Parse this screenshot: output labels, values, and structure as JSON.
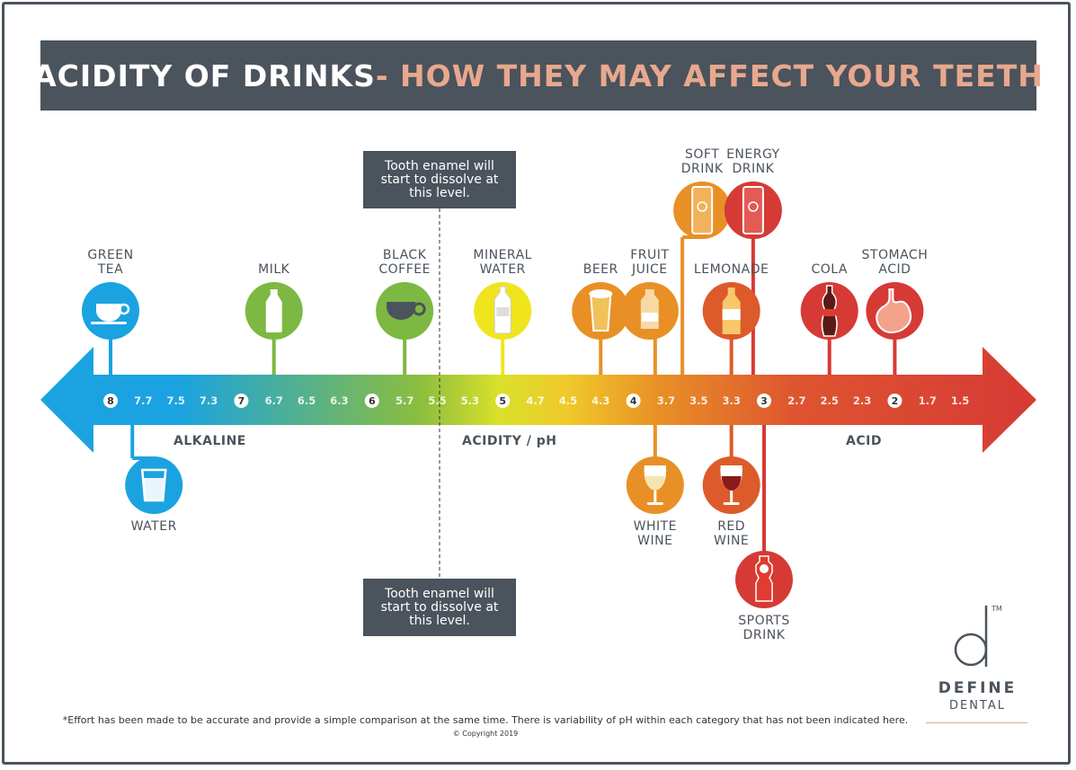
{
  "title": {
    "main": "ACIDITY OF DRINKS",
    "sub": " - HOW THEY MAY AFFECT YOUR TEETH"
  },
  "axis": {
    "ticks": [
      "8",
      "7.7",
      "7.5",
      "7.3",
      "7",
      "6.7",
      "6.5",
      "6.3",
      "6",
      "5.7",
      "5.5",
      "5.3",
      "5",
      "4.7",
      "4.5",
      "4.3",
      "4",
      "3.7",
      "3.5",
      "3.3",
      "3",
      "2.7",
      "2.5",
      "2.3",
      "2",
      "1.7",
      "1.5"
    ],
    "circled_ticks": [
      "8",
      "7",
      "6",
      "5",
      "4",
      "3",
      "2"
    ],
    "zones": {
      "left": "ALKALINE",
      "center": "ACIDITY / pH",
      "right": "ACID"
    }
  },
  "callout": {
    "text": "Tooth enamel will start to dissolve at this level."
  },
  "drinks": [
    {
      "id": "green-tea",
      "label": [
        "GREEN",
        "TEA"
      ],
      "ph": 8,
      "side": "top",
      "color": "#1aa3e0",
      "icon": "teacup-icon"
    },
    {
      "id": "water",
      "label": [
        "WATER"
      ],
      "ph": 7.8,
      "side": "bottom",
      "color": "#1aa3e0",
      "icon": "glass-icon"
    },
    {
      "id": "milk",
      "label": [
        "MILK"
      ],
      "ph": 6.7,
      "side": "top",
      "color": "#7db843",
      "icon": "milk-bottle-icon"
    },
    {
      "id": "black-coffee",
      "label": [
        "BLACK",
        "COFFEE"
      ],
      "ph": 5.7,
      "side": "top",
      "color": "#7db843",
      "icon": "coffee-cup-icon"
    },
    {
      "id": "mineral-water",
      "label": [
        "MINERAL",
        "WATER"
      ],
      "ph": 5,
      "side": "top",
      "color": "#f0e51c",
      "icon": "water-bottle-icon"
    },
    {
      "id": "beer",
      "label": [
        "BEER"
      ],
      "ph": 4.3,
      "side": "top",
      "color": "#e89026",
      "icon": "beer-glass-icon"
    },
    {
      "id": "fruit-juice",
      "label": [
        "FRUIT",
        "JUICE"
      ],
      "ph": 3.8,
      "side": "top",
      "color": "#e89026",
      "icon": "juice-bottle-icon"
    },
    {
      "id": "soft-drink",
      "label": [
        "SOFT",
        "DRINK"
      ],
      "ph": 3.6,
      "side": "top-high",
      "color": "#e89026",
      "icon": "soda-can-icon"
    },
    {
      "id": "white-wine",
      "label": [
        "WHITE",
        "WINE"
      ],
      "ph": 3.8,
      "side": "bottom",
      "color": "#e89026",
      "icon": "wine-glass-icon"
    },
    {
      "id": "lemonade",
      "label": [
        "LEMONADE"
      ],
      "ph": 3.3,
      "side": "top",
      "color": "#dd5a2a",
      "icon": "lemonade-bottle-icon"
    },
    {
      "id": "red-wine",
      "label": [
        "RED",
        "WINE"
      ],
      "ph": 3.3,
      "side": "bottom",
      "color": "#dd5a2a",
      "icon": "red-wine-glass-icon"
    },
    {
      "id": "energy-drink",
      "label": [
        "ENERGY",
        "DRINK"
      ],
      "ph": 3.1,
      "side": "top-high",
      "color": "#d63a35",
      "icon": "energy-can-icon"
    },
    {
      "id": "sports-drink",
      "label": [
        "SPORTS",
        "DRINK"
      ],
      "ph": 3,
      "side": "bottom-low",
      "color": "#d63a35",
      "icon": "sports-bottle-icon"
    },
    {
      "id": "cola",
      "label": [
        "COLA"
      ],
      "ph": 2.5,
      "side": "top",
      "color": "#d63a35",
      "icon": "cola-bottle-icon"
    },
    {
      "id": "stomach-acid",
      "label": [
        "STOMACH",
        "ACID"
      ],
      "ph": 2,
      "side": "top",
      "color": "#d63a35",
      "icon": "stomach-icon"
    }
  ],
  "colors": {
    "frame": "#4b535c",
    "accent": "#e8a88e",
    "gradient": [
      "#1aa3e0",
      "#7db843",
      "#f0e51c",
      "#e89026",
      "#d63a35"
    ]
  },
  "footnote": "*Effort has been made to be accurate and provide a simple comparison at the same time. There is variability of pH within each category that has not been indicated here.",
  "copyright": "© Copyright 2019",
  "brand": {
    "mark": "d",
    "trademark": "TM",
    "name": "DEFINE",
    "tagline": "DENTAL"
  }
}
